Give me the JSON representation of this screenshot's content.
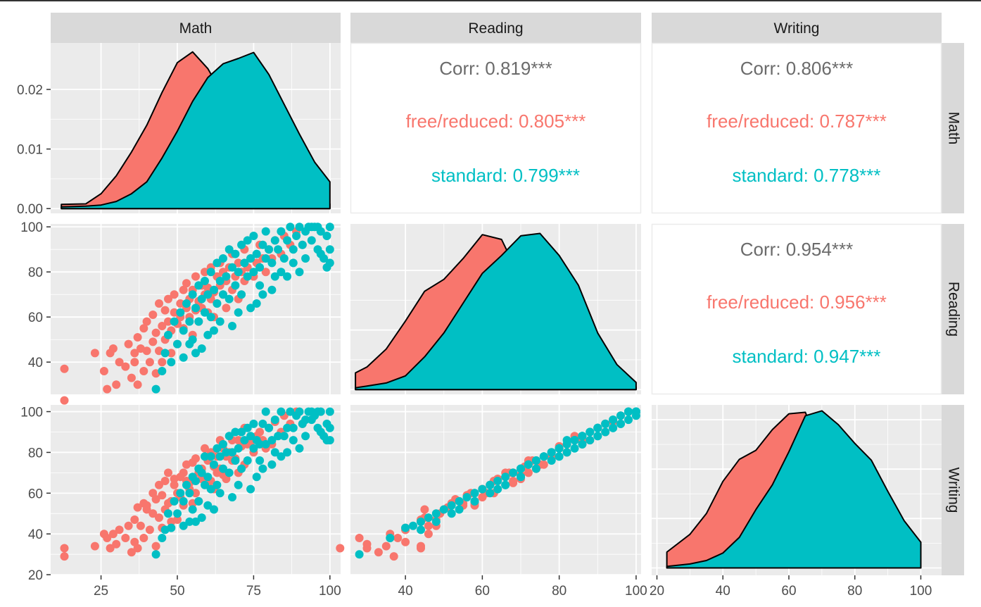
{
  "chart_data": {
    "type": "scatter-matrix",
    "variables": [
      "Math",
      "Reading",
      "Writing"
    ],
    "groups": [
      {
        "name": "free/reduced",
        "color": "#F8766D"
      },
      {
        "name": "standard",
        "color": "#00BFC4"
      }
    ],
    "axis_ticks": {
      "Math": [
        25,
        50,
        75,
        100
      ],
      "Reading": [
        40,
        60,
        80,
        100
      ],
      "Writing": [
        20,
        40,
        60,
        80,
        100
      ]
    },
    "density_y_ticks": [
      "0.00",
      "0.01",
      "0.02"
    ],
    "ranges": {
      "Math": [
        10,
        100
      ],
      "Reading": [
        27,
        100
      ],
      "Writing": [
        23,
        100
      ]
    },
    "correlations": [
      {
        "row": "Math",
        "col": "Reading",
        "corr_label": "Corr: 0.819***",
        "free_label": "free/reduced: 0.805***",
        "standard_label": "standard: 0.799***"
      },
      {
        "row": "Math",
        "col": "Writing",
        "corr_label": "Corr: 0.806***",
        "free_label": "free/reduced: 0.787***",
        "standard_label": "standard: 0.778***"
      },
      {
        "row": "Reading",
        "col": "Writing",
        "corr_label": "Corr: 0.954***",
        "free_label": "free/reduced: 0.956***",
        "standard_label": "standard: 0.947***"
      }
    ],
    "densities": {
      "Math": {
        "x": [
          12,
          20,
          25,
          30,
          35,
          40,
          45,
          50,
          55,
          60,
          65,
          70,
          75,
          80,
          85,
          90,
          95,
          100
        ],
        "free/reduced": [
          0.0007,
          0.0008,
          0.0025,
          0.0055,
          0.0095,
          0.014,
          0.0195,
          0.0245,
          0.0263,
          0.0235,
          0.019,
          0.014,
          0.01,
          0.007,
          0.0045,
          0.0028,
          0.0015,
          0.0008
        ],
        "standard": [
          0.0003,
          0.0004,
          0.0006,
          0.0012,
          0.0025,
          0.0045,
          0.0085,
          0.013,
          0.018,
          0.022,
          0.0243,
          0.0252,
          0.0262,
          0.0225,
          0.0175,
          0.0125,
          0.0078,
          0.0045
        ]
      },
      "Reading": {
        "x": [
          27,
          30,
          35,
          40,
          45,
          50,
          55,
          60,
          65,
          70,
          75,
          80,
          85,
          90,
          95,
          100
        ],
        "free/reduced": [
          0.0028,
          0.0038,
          0.0068,
          0.0115,
          0.0165,
          0.0185,
          0.022,
          0.026,
          0.0252,
          0.0185,
          0.0128,
          0.0078,
          0.0042,
          0.002,
          0.0009,
          0.0004
        ],
        "standard": [
          0.0003,
          0.0006,
          0.0011,
          0.0023,
          0.0055,
          0.0095,
          0.0145,
          0.0195,
          0.0225,
          0.0258,
          0.0262,
          0.0225,
          0.0175,
          0.0095,
          0.0042,
          0.0012
        ]
      },
      "Writing": {
        "x": [
          23,
          30,
          35,
          40,
          45,
          50,
          55,
          60,
          65,
          70,
          75,
          80,
          85,
          90,
          95,
          100
        ],
        "free/reduced": [
          0.0032,
          0.0068,
          0.011,
          0.0175,
          0.022,
          0.0238,
          0.028,
          0.0312,
          0.0315,
          0.0235,
          0.0148,
          0.0088,
          0.0048,
          0.0022,
          0.001,
          0.0004
        ],
        "standard": [
          0.0003,
          0.0008,
          0.0015,
          0.003,
          0.0062,
          0.0118,
          0.0168,
          0.0235,
          0.0308,
          0.0318,
          0.029,
          0.0252,
          0.0218,
          0.0155,
          0.0095,
          0.0052
        ]
      }
    },
    "points": [
      [
        13,
        37,
        29,
        "free/reduced"
      ],
      [
        13,
        23,
        33,
        "free/reduced"
      ],
      [
        23,
        44,
        34,
        "free/reduced"
      ],
      [
        26,
        36,
        40,
        "free/reduced"
      ],
      [
        27,
        28,
        38,
        "free/reduced"
      ],
      [
        28,
        44,
        33,
        "free/reduced"
      ],
      [
        29,
        46,
        40,
        "free/reduced"
      ],
      [
        30,
        30,
        35,
        "free/reduced"
      ],
      [
        31,
        40,
        42,
        "free/reduced"
      ],
      [
        33,
        38,
        38,
        "free/reduced"
      ],
      [
        34,
        48,
        44,
        "free/reduced"
      ],
      [
        35,
        33,
        31,
        "free/reduced"
      ],
      [
        36,
        44,
        47,
        "free/reduced"
      ],
      [
        36,
        40,
        36,
        "free/reduced"
      ],
      [
        37,
        30,
        33,
        "free/reduced"
      ],
      [
        37,
        51,
        53,
        "free/reduced"
      ],
      [
        38,
        46,
        44,
        "free/reduced"
      ],
      [
        39,
        55,
        55,
        "free/reduced"
      ],
      [
        39,
        36,
        38,
        "free/reduced"
      ],
      [
        40,
        45,
        52,
        "free/reduced"
      ],
      [
        40,
        58,
        54,
        "free/reduced"
      ],
      [
        41,
        40,
        42,
        "free/reduced"
      ],
      [
        42,
        49,
        50,
        "free/reduced"
      ],
      [
        42,
        61,
        60,
        "free/reduced"
      ],
      [
        43,
        35,
        34,
        "free/reduced"
      ],
      [
        43,
        53,
        57,
        "free/reduced"
      ],
      [
        44,
        45,
        48,
        "free/reduced"
      ],
      [
        44,
        66,
        64,
        "free/reduced"
      ],
      [
        45,
        56,
        59,
        "free/reduced"
      ],
      [
        45,
        40,
        43,
        "free/reduced"
      ],
      [
        46,
        63,
        66,
        "free/reduced"
      ],
      [
        46,
        50,
        52,
        "free/reduced"
      ],
      [
        47,
        58,
        55,
        "free/reduced"
      ],
      [
        47,
        68,
        70,
        "free/reduced"
      ],
      [
        48,
        54,
        56,
        "free/reduced"
      ],
      [
        48,
        44,
        46,
        "free/reduced"
      ],
      [
        49,
        62,
        64,
        "free/reduced"
      ],
      [
        49,
        70,
        67,
        "free/reduced"
      ],
      [
        50,
        57,
        60,
        "free/reduced"
      ],
      [
        50,
        48,
        47,
        "free/reduced"
      ],
      [
        51,
        66,
        68,
        "free/reduced"
      ],
      [
        51,
        60,
        58,
        "free/reduced"
      ],
      [
        52,
        72,
        70,
        "free/reduced"
      ],
      [
        52,
        55,
        54,
        "free/reduced"
      ],
      [
        53,
        64,
        66,
        "free/reduced"
      ],
      [
        53,
        75,
        74,
        "free/reduced"
      ],
      [
        54,
        60,
        62,
        "free/reduced"
      ],
      [
        54,
        68,
        65,
        "free/reduced"
      ],
      [
        55,
        52,
        55,
        "free/reduced"
      ],
      [
        55,
        72,
        75,
        "free/reduced"
      ],
      [
        56,
        63,
        60,
        "free/reduced"
      ],
      [
        56,
        78,
        77,
        "free/reduced"
      ],
      [
        57,
        67,
        70,
        "free/reduced"
      ],
      [
        57,
        58,
        56,
        "free/reduced"
      ],
      [
        58,
        74,
        72,
        "free/reduced"
      ],
      [
        58,
        64,
        67,
        "free/reduced"
      ],
      [
        59,
        70,
        68,
        "free/reduced"
      ],
      [
        59,
        80,
        82,
        "free/reduced"
      ],
      [
        60,
        62,
        64,
        "free/reduced"
      ],
      [
        60,
        73,
        76,
        "free/reduced"
      ],
      [
        61,
        68,
        66,
        "free/reduced"
      ],
      [
        61,
        82,
        80,
        "free/reduced"
      ],
      [
        62,
        71,
        73,
        "free/reduced"
      ],
      [
        62,
        60,
        62,
        "free/reduced"
      ],
      [
        63,
        78,
        78,
        "free/reduced"
      ],
      [
        63,
        66,
        70,
        "free/reduced"
      ],
      [
        64,
        74,
        72,
        "free/reduced"
      ],
      [
        64,
        84,
        86,
        "free/reduced"
      ],
      [
        65,
        70,
        69,
        "free/reduced"
      ],
      [
        65,
        80,
        82,
        "free/reduced"
      ],
      [
        66,
        76,
        78,
        "free/reduced"
      ],
      [
        66,
        64,
        67,
        "free/reduced"
      ],
      [
        67,
        82,
        80,
        "free/reduced"
      ],
      [
        68,
        72,
        76,
        "free/reduced"
      ],
      [
        68,
        88,
        86,
        "free/reduced"
      ],
      [
        69,
        78,
        77,
        "free/reduced"
      ],
      [
        70,
        84,
        86,
        "free/reduced"
      ],
      [
        70,
        68,
        70,
        "free/reduced"
      ],
      [
        71,
        80,
        83,
        "free/reduced"
      ],
      [
        72,
        76,
        74,
        "free/reduced"
      ],
      [
        72,
        90,
        92,
        "free/reduced"
      ],
      [
        73,
        82,
        84,
        "free/reduced"
      ],
      [
        74,
        86,
        85,
        "free/reduced"
      ],
      [
        75,
        78,
        80,
        "free/reduced"
      ],
      [
        76,
        84,
        88,
        "free/reduced"
      ],
      [
        77,
        92,
        90,
        "free/reduced"
      ],
      [
        78,
        86,
        86,
        "free/reduced"
      ],
      [
        79,
        80,
        82,
        "free/reduced"
      ],
      [
        80,
        90,
        92,
        "free/reduced"
      ],
      [
        81,
        86,
        84,
        "free/reduced"
      ],
      [
        82,
        94,
        95,
        "free/reduced"
      ],
      [
        84,
        88,
        90,
        "free/reduced"
      ],
      [
        85,
        96,
        98,
        "free/reduced"
      ],
      [
        87,
        92,
        94,
        "free/reduced"
      ],
      [
        89,
        98,
        100,
        "free/reduced"
      ],
      [
        91,
        92,
        94,
        "free/reduced"
      ],
      [
        43,
        28,
        30,
        "standard"
      ],
      [
        45,
        36,
        38,
        "standard"
      ],
      [
        46,
        44,
        42,
        "standard"
      ],
      [
        47,
        52,
        50,
        "standard"
      ],
      [
        48,
        40,
        43,
        "standard"
      ],
      [
        49,
        58,
        56,
        "standard"
      ],
      [
        50,
        48,
        50,
        "standard"
      ],
      [
        51,
        62,
        60,
        "standard"
      ],
      [
        52,
        54,
        56,
        "standard"
      ],
      [
        53,
        66,
        64,
        "standard"
      ],
      [
        54,
        58,
        60,
        "standard"
      ],
      [
        55,
        70,
        68,
        "standard"
      ],
      [
        55,
        50,
        52,
        "standard"
      ],
      [
        56,
        64,
        66,
        "standard"
      ],
      [
        57,
        74,
        72,
        "standard"
      ],
      [
        57,
        58,
        56,
        "standard"
      ],
      [
        58,
        68,
        70,
        "standard"
      ],
      [
        59,
        62,
        64,
        "standard"
      ],
      [
        59,
        76,
        78,
        "standard"
      ],
      [
        60,
        70,
        68,
        "standard"
      ],
      [
        61,
        60,
        62,
        "standard"
      ],
      [
        61,
        80,
        78,
        "standard"
      ],
      [
        62,
        72,
        74,
        "standard"
      ],
      [
        63,
        66,
        64,
        "standard"
      ],
      [
        63,
        84,
        82,
        "standard"
      ],
      [
        64,
        76,
        78,
        "standard"
      ],
      [
        65,
        70,
        72,
        "standard"
      ],
      [
        65,
        86,
        84,
        "standard"
      ],
      [
        66,
        78,
        80,
        "standard"
      ],
      [
        67,
        68,
        70,
        "standard"
      ],
      [
        67,
        90,
        88,
        "standard"
      ],
      [
        68,
        82,
        80,
        "standard"
      ],
      [
        69,
        74,
        76,
        "standard"
      ],
      [
        69,
        88,
        90,
        "standard"
      ],
      [
        70,
        80,
        82,
        "standard"
      ],
      [
        71,
        70,
        72,
        "standard"
      ],
      [
        71,
        92,
        90,
        "standard"
      ],
      [
        72,
        84,
        86,
        "standard"
      ],
      [
        73,
        78,
        76,
        "standard"
      ],
      [
        73,
        94,
        92,
        "standard"
      ],
      [
        74,
        86,
        88,
        "standard"
      ],
      [
        75,
        80,
        82,
        "standard"
      ],
      [
        75,
        96,
        94,
        "standard"
      ],
      [
        76,
        88,
        86,
        "standard"
      ],
      [
        77,
        82,
        84,
        "standard"
      ],
      [
        77,
        74,
        76,
        "standard"
      ],
      [
        78,
        92,
        94,
        "standard"
      ],
      [
        79,
        86,
        84,
        "standard"
      ],
      [
        79,
        98,
        100,
        "standard"
      ],
      [
        80,
        90,
        92,
        "standard"
      ],
      [
        81,
        84,
        86,
        "standard"
      ],
      [
        82,
        94,
        96,
        "standard"
      ],
      [
        82,
        78,
        80,
        "standard"
      ],
      [
        83,
        90,
        88,
        "standard"
      ],
      [
        84,
        98,
        100,
        "standard"
      ],
      [
        85,
        86,
        88,
        "standard"
      ],
      [
        86,
        94,
        92,
        "standard"
      ],
      [
        87,
        100,
        100,
        "standard"
      ],
      [
        88,
        90,
        92,
        "standard"
      ],
      [
        89,
        96,
        98,
        "standard"
      ],
      [
        90,
        100,
        100,
        "standard"
      ],
      [
        91,
        92,
        94,
        "standard"
      ],
      [
        92,
        98,
        96,
        "standard"
      ],
      [
        93,
        100,
        100,
        "standard"
      ],
      [
        94,
        94,
        96,
        "standard"
      ],
      [
        95,
        100,
        98,
        "standard"
      ],
      [
        96,
        90,
        92,
        "standard"
      ],
      [
        97,
        98,
        100,
        "standard"
      ],
      [
        98,
        86,
        88,
        "standard"
      ],
      [
        99,
        96,
        94,
        "standard"
      ],
      [
        100,
        100,
        100,
        "standard"
      ],
      [
        100,
        90,
        92,
        "standard"
      ],
      [
        100,
        84,
        86,
        "standard"
      ],
      [
        99,
        82,
        86,
        "standard"
      ],
      [
        97,
        88,
        90,
        "standard"
      ],
      [
        96,
        100,
        100,
        "standard"
      ],
      [
        94,
        100,
        100,
        "standard"
      ],
      [
        92,
        86,
        88,
        "standard"
      ],
      [
        90,
        80,
        82,
        "standard"
      ],
      [
        88,
        84,
        86,
        "standard"
      ],
      [
        86,
        78,
        80,
        "standard"
      ],
      [
        84,
        80,
        78,
        "standard"
      ],
      [
        81,
        72,
        74,
        "standard"
      ],
      [
        78,
        70,
        72,
        "standard"
      ],
      [
        76,
        66,
        68,
        "standard"
      ],
      [
        74,
        64,
        62,
        "standard"
      ],
      [
        70,
        62,
        64,
        "standard"
      ],
      [
        68,
        56,
        58,
        "standard"
      ],
      [
        64,
        58,
        60,
        "standard"
      ],
      [
        62,
        54,
        52,
        "standard"
      ],
      [
        60,
        52,
        54,
        "standard"
      ],
      [
        58,
        46,
        48,
        "standard"
      ],
      [
        56,
        44,
        46,
        "standard"
      ],
      [
        54,
        48,
        46,
        "standard"
      ],
      [
        52,
        42,
        44,
        "standard"
      ]
    ]
  }
}
